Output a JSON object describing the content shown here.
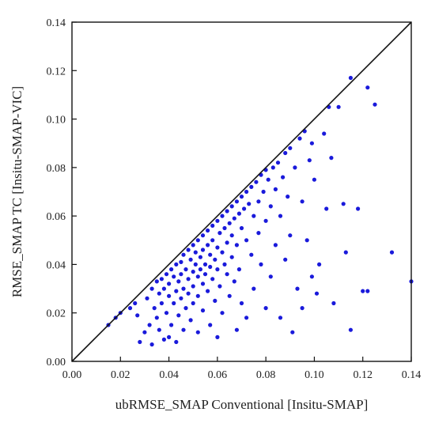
{
  "chart_data": {
    "type": "scatter",
    "xlabel": "ubRMSE_SMAP Conventional [Insitu-SMAP]",
    "ylabel": "RMSE_SMAP TC [Insitu-SMAP-VIC]",
    "xlim": [
      0,
      0.14
    ],
    "ylim": [
      0,
      0.14
    ],
    "xticks": [
      "0.00",
      "0.02",
      "0.04",
      "0.06",
      "0.08",
      "0.10",
      "0.12",
      "0.14"
    ],
    "yticks": [
      "0.00",
      "0.02",
      "0.04",
      "0.06",
      "0.08",
      "0.10",
      "0.12",
      "0.14"
    ],
    "grid": false,
    "reference_line": "1:1",
    "colors": {
      "points": "#1a1adb",
      "line": "#111111",
      "frame": "#111111"
    },
    "series": [
      {
        "points": [
          [
            0.015,
            0.015
          ],
          [
            0.018,
            0.018
          ],
          [
            0.02,
            0.02
          ],
          [
            0.024,
            0.022
          ],
          [
            0.026,
            0.024
          ],
          [
            0.027,
            0.019
          ],
          [
            0.028,
            0.008
          ],
          [
            0.03,
            0.012
          ],
          [
            0.031,
            0.026
          ],
          [
            0.032,
            0.015
          ],
          [
            0.033,
            0.007
          ],
          [
            0.033,
            0.03
          ],
          [
            0.034,
            0.022
          ],
          [
            0.035,
            0.033
          ],
          [
            0.035,
            0.018
          ],
          [
            0.036,
            0.028
          ],
          [
            0.036,
            0.013
          ],
          [
            0.037,
            0.034
          ],
          [
            0.037,
            0.024
          ],
          [
            0.038,
            0.009
          ],
          [
            0.038,
            0.03
          ],
          [
            0.039,
            0.036
          ],
          [
            0.039,
            0.02
          ],
          [
            0.04,
            0.01
          ],
          [
            0.04,
            0.032
          ],
          [
            0.04,
            0.027
          ],
          [
            0.041,
            0.038
          ],
          [
            0.041,
            0.015
          ],
          [
            0.042,
            0.035
          ],
          [
            0.042,
            0.024
          ],
          [
            0.043,
            0.04
          ],
          [
            0.043,
            0.029
          ],
          [
            0.043,
            0.008
          ],
          [
            0.044,
            0.033
          ],
          [
            0.044,
            0.019
          ],
          [
            0.045,
            0.041
          ],
          [
            0.045,
            0.036
          ],
          [
            0.045,
            0.026
          ],
          [
            0.046,
            0.044
          ],
          [
            0.046,
            0.03
          ],
          [
            0.046,
            0.013
          ],
          [
            0.047,
            0.038
          ],
          [
            0.047,
            0.022
          ],
          [
            0.048,
            0.046
          ],
          [
            0.048,
            0.034
          ],
          [
            0.048,
            0.028
          ],
          [
            0.049,
            0.042
          ],
          [
            0.049,
            0.017
          ],
          [
            0.05,
            0.048
          ],
          [
            0.05,
            0.037
          ],
          [
            0.05,
            0.031
          ],
          [
            0.05,
            0.024
          ],
          [
            0.051,
            0.045
          ],
          [
            0.051,
            0.04
          ],
          [
            0.052,
            0.05
          ],
          [
            0.052,
            0.035
          ],
          [
            0.052,
            0.027
          ],
          [
            0.052,
            0.012
          ],
          [
            0.053,
            0.043
          ],
          [
            0.053,
            0.038
          ],
          [
            0.054,
            0.052
          ],
          [
            0.054,
            0.046
          ],
          [
            0.054,
            0.032
          ],
          [
            0.054,
            0.021
          ],
          [
            0.055,
            0.04
          ],
          [
            0.055,
            0.036
          ],
          [
            0.056,
            0.054
          ],
          [
            0.056,
            0.048
          ],
          [
            0.056,
            0.029
          ],
          [
            0.057,
            0.044
          ],
          [
            0.057,
            0.039
          ],
          [
            0.057,
            0.015
          ],
          [
            0.058,
            0.056
          ],
          [
            0.058,
            0.05
          ],
          [
            0.058,
            0.034
          ],
          [
            0.059,
            0.042
          ],
          [
            0.059,
            0.025
          ],
          [
            0.06,
            0.058
          ],
          [
            0.06,
            0.047
          ],
          [
            0.06,
            0.038
          ],
          [
            0.06,
            0.01
          ],
          [
            0.061,
            0.053
          ],
          [
            0.061,
            0.031
          ],
          [
            0.062,
            0.06
          ],
          [
            0.062,
            0.045
          ],
          [
            0.062,
            0.02
          ],
          [
            0.063,
            0.055
          ],
          [
            0.063,
            0.04
          ],
          [
            0.064,
            0.062
          ],
          [
            0.064,
            0.049
          ],
          [
            0.064,
            0.036
          ],
          [
            0.065,
            0.057
          ],
          [
            0.065,
            0.027
          ],
          [
            0.066,
            0.064
          ],
          [
            0.066,
            0.052
          ],
          [
            0.066,
            0.043
          ],
          [
            0.067,
            0.059
          ],
          [
            0.067,
            0.033
          ],
          [
            0.068,
            0.066
          ],
          [
            0.068,
            0.048
          ],
          [
            0.068,
            0.013
          ],
          [
            0.069,
            0.061
          ],
          [
            0.069,
            0.038
          ],
          [
            0.07,
            0.068
          ],
          [
            0.07,
            0.055
          ],
          [
            0.07,
            0.024
          ],
          [
            0.071,
            0.063
          ],
          [
            0.072,
            0.07
          ],
          [
            0.072,
            0.05
          ],
          [
            0.072,
            0.018
          ],
          [
            0.073,
            0.065
          ],
          [
            0.074,
            0.072
          ],
          [
            0.074,
            0.044
          ],
          [
            0.075,
            0.06
          ],
          [
            0.075,
            0.03
          ],
          [
            0.076,
            0.074
          ],
          [
            0.077,
            0.066
          ],
          [
            0.077,
            0.053
          ],
          [
            0.078,
            0.077
          ],
          [
            0.078,
            0.04
          ],
          [
            0.079,
            0.07
          ],
          [
            0.08,
            0.079
          ],
          [
            0.08,
            0.058
          ],
          [
            0.08,
            0.022
          ],
          [
            0.081,
            0.075
          ],
          [
            0.082,
            0.064
          ],
          [
            0.082,
            0.035
          ],
          [
            0.083,
            0.08
          ],
          [
            0.084,
            0.071
          ],
          [
            0.084,
            0.048
          ],
          [
            0.085,
            0.082
          ],
          [
            0.086,
            0.06
          ],
          [
            0.086,
            0.018
          ],
          [
            0.087,
            0.076
          ],
          [
            0.088,
            0.086
          ],
          [
            0.088,
            0.042
          ],
          [
            0.089,
            0.068
          ],
          [
            0.09,
            0.088
          ],
          [
            0.09,
            0.052
          ],
          [
            0.091,
            0.012
          ],
          [
            0.092,
            0.08
          ],
          [
            0.093,
            0.03
          ],
          [
            0.094,
            0.092
          ],
          [
            0.095,
            0.066
          ],
          [
            0.095,
            0.022
          ],
          [
            0.096,
            0.095
          ],
          [
            0.097,
            0.05
          ],
          [
            0.098,
            0.083
          ],
          [
            0.099,
            0.09
          ],
          [
            0.099,
            0.035
          ],
          [
            0.1,
            0.075
          ],
          [
            0.101,
            0.028
          ],
          [
            0.102,
            0.04
          ],
          [
            0.104,
            0.094
          ],
          [
            0.105,
            0.063
          ],
          [
            0.106,
            0.105
          ],
          [
            0.107,
            0.084
          ],
          [
            0.108,
            0.024
          ],
          [
            0.11,
            0.105
          ],
          [
            0.112,
            0.065
          ],
          [
            0.113,
            0.045
          ],
          [
            0.115,
            0.117
          ],
          [
            0.115,
            0.013
          ],
          [
            0.118,
            0.063
          ],
          [
            0.12,
            0.029
          ],
          [
            0.122,
            0.113
          ],
          [
            0.122,
            0.029
          ],
          [
            0.125,
            0.106
          ],
          [
            0.132,
            0.045
          ],
          [
            0.14,
            0.033
          ]
        ]
      }
    ]
  }
}
